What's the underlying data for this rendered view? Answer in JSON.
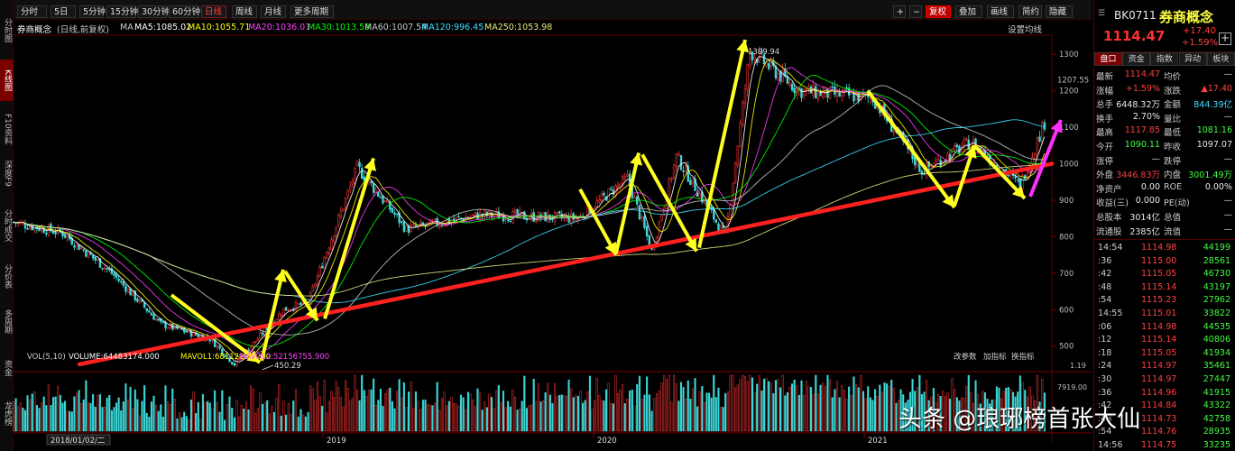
{
  "toolbar": {
    "items": [
      "分时",
      "5日",
      "5分钟",
      "15分钟",
      "30分钟",
      "60分钟",
      "日线",
      "周线",
      "月线",
      "更多周期"
    ],
    "right_items": [
      "+",
      "−",
      "复权",
      "叠加",
      "画线",
      "简约",
      "隐藏"
    ],
    "active_period": "日线"
  },
  "left_rail": [
    "分时图",
    "K线图",
    "F10资料",
    "深度F9",
    "分时成交",
    "分价表",
    "多周期",
    "资金",
    "龙虎榜"
  ],
  "title_line": {
    "name": "券商概念",
    "mode": "(日线,前复权)",
    "ma_label": "MA",
    "ma": [
      {
        "label": "MA5:1085.02",
        "color": "#ffffff"
      },
      {
        "label": "MA10:1055.71",
        "color": "#ffff00"
      },
      {
        "label": "MA20:1036.01",
        "color": "#ff40ff"
      },
      {
        "label": "MA30:1013.59",
        "color": "#00ff00"
      },
      {
        "label": "MA60:1007.54",
        "color": "#c8c8c8"
      },
      {
        "label": "MA120:996.45",
        "color": "#40e0ff"
      },
      {
        "label": "MA250:1053.98",
        "color": "#e8e880"
      }
    ],
    "settings": "设置均线"
  },
  "vol_line": {
    "label": "VOL(5,10)",
    "items": [
      {
        "label": "VOLUME:64483174.000",
        "color": "#ffffff"
      },
      {
        "label": "MAVOL1:68112993.200",
        "color": "#ffff00"
      },
      {
        "label": "MAVOL2:52156755.900",
        "color": "#ff40ff"
      }
    ],
    "buttons": [
      "改参数",
      "加指标",
      "换指标"
    ]
  },
  "bottom_bar": {
    "date_box": "2018/01/02/二",
    "x_labels": [
      "2019",
      "2020",
      "2021"
    ]
  },
  "chart_data": {
    "type": "candlestick",
    "title": "券商概念",
    "y_axis_ticks": [
      1300,
      1200,
      1100,
      1000,
      900,
      800,
      700,
      600,
      500
    ],
    "ylim": [
      430,
      1350
    ],
    "current_price_tag": "1207.55",
    "volume_axis_ticks": [
      "1.19",
      "7919.00"
    ],
    "annotations": [
      {
        "text": "450.29",
        "kind": "low"
      },
      {
        "text": "1309.94",
        "kind": "high"
      }
    ],
    "price_path_approx": [
      {
        "x": "2018-01",
        "y": 840
      },
      {
        "x": "2018-03",
        "y": 810
      },
      {
        "x": "2018-05",
        "y": 700
      },
      {
        "x": "2018-07",
        "y": 560
      },
      {
        "x": "2018-09",
        "y": 520
      },
      {
        "x": "2018-10",
        "y": 450
      },
      {
        "x": "2018-12",
        "y": 600
      },
      {
        "x": "2019-01",
        "y": 620
      },
      {
        "x": "2019-03",
        "y": 990
      },
      {
        "x": "2019-05",
        "y": 820
      },
      {
        "x": "2019-08",
        "y": 860
      },
      {
        "x": "2019-12",
        "y": 850
      },
      {
        "x": "2020-02",
        "y": 960
      },
      {
        "x": "2020-03",
        "y": 760
      },
      {
        "x": "2020-04",
        "y": 1020
      },
      {
        "x": "2020-06",
        "y": 800
      },
      {
        "x": "2020-07",
        "y": 1309
      },
      {
        "x": "2020-09",
        "y": 1200
      },
      {
        "x": "2020-12",
        "y": 1180
      },
      {
        "x": "2021-02",
        "y": 980
      },
      {
        "x": "2021-04",
        "y": 1060
      },
      {
        "x": "2021-06",
        "y": 940
      },
      {
        "x": "2021-07",
        "y": 1114
      }
    ],
    "trendline": {
      "color": "#ff2020",
      "from": {
        "x": "2018-01",
        "y": 450
      },
      "to": {
        "x": "2021-07",
        "y": 1000
      }
    }
  },
  "right_panel": {
    "code": "BK0711",
    "name": "券商概念",
    "price": "1114.47",
    "change": "+17.40",
    "change_pct": "+1.59%",
    "tabs": [
      "盘口",
      "资金",
      "指数",
      "异动",
      "板块"
    ],
    "quote_rows": [
      {
        "l1": "最新",
        "v1": "1114.47",
        "c1": "#ff4040",
        "l2": "均价",
        "v2": "—",
        "c2": "#ccc"
      },
      {
        "l1": "涨幅",
        "v1": "+1.59%",
        "c1": "#ff4040",
        "l2": "涨跌",
        "v2": "▲17.40",
        "c2": "#ff4040"
      },
      {
        "l1": "总手",
        "v1": "6448.32万",
        "c1": "#e8e8e8",
        "l2": "金额",
        "v2": "844.39亿",
        "c2": "#40e0ff"
      },
      {
        "l1": "换手",
        "v1": "2.70%",
        "c1": "#e8e8e8",
        "l2": "量比",
        "v2": "—",
        "c2": "#ccc"
      },
      {
        "l1": "最高",
        "v1": "1117.85",
        "c1": "#ff4040",
        "l2": "最低",
        "v2": "1081.16",
        "c2": "#40ff40"
      },
      {
        "l1": "今开",
        "v1": "1090.11",
        "c1": "#40ff40",
        "l2": "昨收",
        "v2": "1097.07",
        "c2": "#e8e8e8"
      },
      {
        "l1": "涨停",
        "v1": "—",
        "c1": "#ccc",
        "l2": "跌停",
        "v2": "—",
        "c2": "#ccc"
      },
      {
        "l1": "外盘",
        "v1": "3446.83万",
        "c1": "#ff4040",
        "l2": "内盘",
        "v2": "3001.49万",
        "c2": "#40ff40"
      },
      {
        "l1": "净资产",
        "v1": "0.00",
        "c1": "#e8e8e8",
        "l2": "ROE",
        "v2": "0.00%",
        "c2": "#e8e8e8"
      },
      {
        "l1": "收益(三)",
        "v1": "0.000",
        "c1": "#e8e8e8",
        "l2": "PE(动)",
        "v2": "—",
        "c2": "#ccc"
      },
      {
        "l1": "总股本",
        "v1": "3014亿",
        "c1": "#e8e8e8",
        "l2": "总值",
        "v2": "—",
        "c2": "#ccc"
      },
      {
        "l1": "流通股",
        "v1": "2385亿",
        "c1": "#e8e8e8",
        "l2": "流值",
        "v2": "—",
        "c2": "#ccc"
      }
    ],
    "ticks": [
      {
        "t": "14:54",
        "p": "1114.98",
        "v": "44199"
      },
      {
        "t": ":36",
        "p": "1115.00",
        "v": "28561"
      },
      {
        "t": ":42",
        "p": "1115.05",
        "v": "46730"
      },
      {
        "t": ":48",
        "p": "1115.14",
        "v": "43197"
      },
      {
        "t": ":54",
        "p": "1115.23",
        "v": "27962"
      },
      {
        "t": "14:55",
        "p": "1115.01",
        "v": "33822"
      },
      {
        "t": ":06",
        "p": "1114.98",
        "v": "44535"
      },
      {
        "t": ":12",
        "p": "1115.14",
        "v": "40806"
      },
      {
        "t": ":18",
        "p": "1115.05",
        "v": "41934"
      },
      {
        "t": ":24",
        "p": "1114.97",
        "v": "35461"
      },
      {
        "t": ":30",
        "p": "1114.97",
        "v": "27447"
      },
      {
        "t": ":36",
        "p": "1114.96",
        "v": "41915"
      },
      {
        "t": ":42",
        "p": "1114.84",
        "v": "43322"
      },
      {
        "t": ":48",
        "p": "1114.73",
        "v": "42758"
      },
      {
        "t": ":54",
        "p": "1114.76",
        "v": "28935"
      },
      {
        "t": "14:56",
        "p": "1114.75",
        "v": "33235"
      }
    ]
  },
  "watermark": "头条 @琅琊榜首张大仙"
}
